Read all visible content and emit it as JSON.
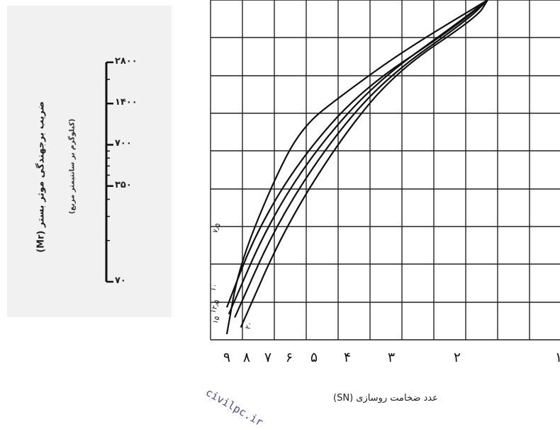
{
  "chart_data": [
    {
      "type": "line",
      "title": "ضریب برجهندگی موثر بستر (Mr)",
      "subtitle": "(کیلوگرم بر سانتیمتر مربع)",
      "scale": {
        "values": [
          2800,
          1400,
          700,
          350,
          70
        ],
        "tick_labels": [
          "۲۸۰۰",
          "۱۴۰۰",
          "۷۰۰",
          "۳۵۰",
          "۷۰"
        ],
        "log_scale": true
      }
    },
    {
      "type": "line",
      "xlabel": "عدد ضخامت روسازی (SN)",
      "x_tick_labels": [
        "۹",
        "۸",
        "۷",
        "۶",
        "۵",
        "۴",
        "۳",
        "۲",
        "۱"
      ],
      "x_tick_values": [
        9,
        8,
        7,
        6,
        5,
        4,
        3,
        2,
        1
      ],
      "xlim": [
        9,
        1
      ],
      "grid": true,
      "curve_labels": [
        "۷٫۵",
        "۱۰",
        "۱۲٫۵",
        "۱۵",
        "۲۰"
      ],
      "series": [
        {
          "name": "۷٫۵",
          "points": [
            [
              9.0,
              0.0
            ],
            [
              8.4,
              0.2
            ],
            [
              6.8,
              0.45
            ],
            [
              5.5,
              0.62
            ],
            [
              4.1,
              0.72
            ],
            [
              2.8,
              0.85
            ],
            [
              1.7,
              1.0
            ]
          ]
        },
        {
          "name": "۱۰",
          "points": [
            [
              9.0,
              0.08
            ],
            [
              7.6,
              0.3
            ],
            [
              5.6,
              0.52
            ],
            [
              3.7,
              0.73
            ],
            [
              2.1,
              0.91
            ],
            [
              1.7,
              1.0
            ]
          ]
        },
        {
          "name": "۱۲٫۵",
          "points": [
            [
              8.9,
              0.06
            ],
            [
              7.0,
              0.33
            ],
            [
              4.9,
              0.56
            ],
            [
              3.3,
              0.76
            ],
            [
              2.0,
              0.93
            ],
            [
              1.7,
              1.0
            ]
          ]
        },
        {
          "name": "۱۵",
          "points": [
            [
              8.6,
              0.05
            ],
            [
              6.6,
              0.33
            ],
            [
              4.5,
              0.58
            ],
            [
              3.1,
              0.77
            ],
            [
              1.9,
              0.94
            ],
            [
              1.7,
              1.0
            ]
          ]
        },
        {
          "name": "۲۰",
          "points": [
            [
              8.3,
              0.02
            ],
            [
              6.2,
              0.32
            ],
            [
              4.1,
              0.6
            ],
            [
              2.9,
              0.79
            ],
            [
              1.8,
              0.95
            ],
            [
              1.7,
              1.0
            ]
          ]
        }
      ]
    }
  ],
  "watermark": "civilpc.ir",
  "colors": {
    "line": "#111111",
    "grid": "#222222",
    "panel": "#f1f1f1"
  }
}
